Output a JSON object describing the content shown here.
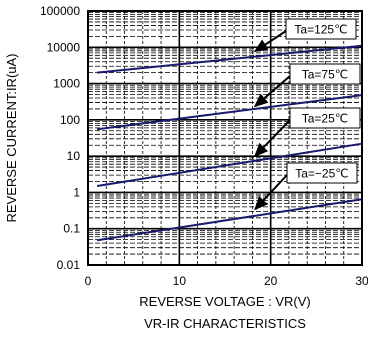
{
  "chart_data": {
    "type": "line",
    "title": "VR-IR CHARACTERISTICS",
    "xlabel": "REVERSE VOLTAGE : VR(V)",
    "ylabel": "REVERSE CURRENT:IR(uA)",
    "xlim": [
      0,
      30
    ],
    "ylim": [
      0.01,
      100000
    ],
    "y_scale": "log",
    "grid": true,
    "x_ticks": [
      0,
      10,
      20,
      30
    ],
    "x_tick_labels": [
      "0",
      "10",
      "20",
      "30"
    ],
    "y_ticks": [
      0.01,
      0.1,
      1,
      10,
      100,
      1000,
      10000,
      100000
    ],
    "y_tick_labels": [
      "0.01",
      "0.1",
      "1",
      "10",
      "100",
      "1000",
      "10000",
      "100000"
    ],
    "series": [
      {
        "name": "Ta=125℃",
        "x": [
          1,
          30
        ],
        "y": [
          2000,
          11000
        ]
      },
      {
        "name": "Ta=75℃",
        "x": [
          1,
          30
        ],
        "y": [
          55,
          480
        ]
      },
      {
        "name": "Ta=25℃",
        "x": [
          1,
          30
        ],
        "y": [
          1.5,
          22
        ]
      },
      {
        "name": "Ta=−25℃",
        "x": [
          1,
          30
        ],
        "y": [
          0.048,
          0.65
        ]
      }
    ],
    "annotations": [
      {
        "text": "Ta=125℃",
        "arrow_to": [
          18,
          6500
        ]
      },
      {
        "text": "Ta=75℃",
        "arrow_to": [
          18,
          200
        ]
      },
      {
        "text": "Ta=25℃",
        "arrow_to": [
          18,
          8.5
        ]
      },
      {
        "text": "Ta=−25℃",
        "arrow_to": [
          18,
          0.29
        ]
      }
    ],
    "colors": {
      "line": "#1a1a6e",
      "grid": "#000000",
      "frame": "#000000"
    }
  }
}
